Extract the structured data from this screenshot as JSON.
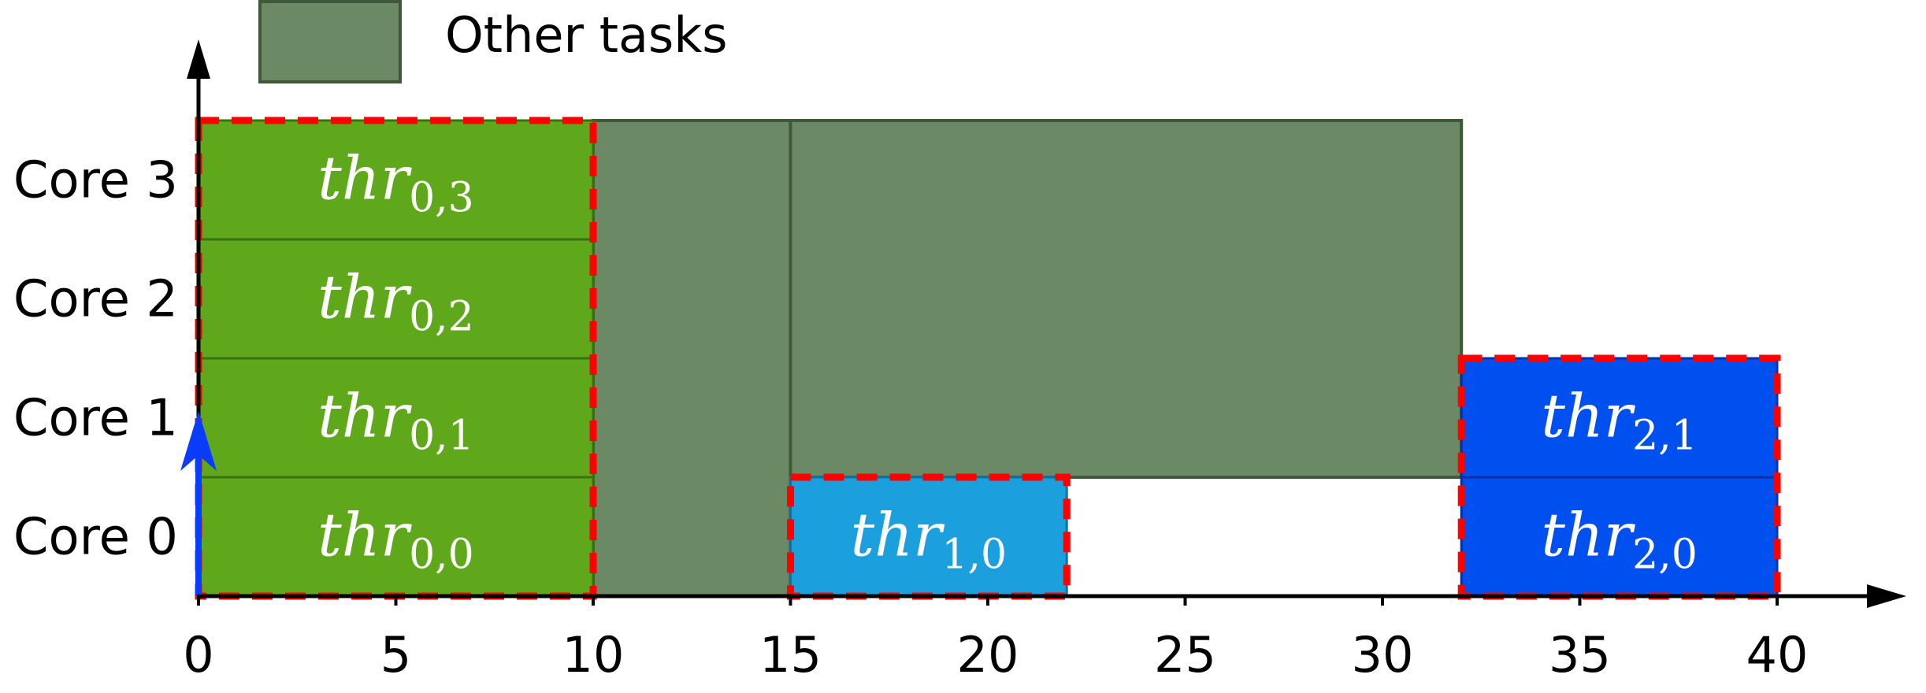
{
  "chart_data": {
    "type": "gantt",
    "xlim": [
      0,
      40
    ],
    "xticks": [
      0,
      5,
      10,
      15,
      20,
      25,
      30,
      35,
      40
    ],
    "xtick_labels": [
      "0",
      "5",
      "10",
      "15",
      "20",
      "25",
      "30",
      "35",
      "40"
    ],
    "rows": [
      "Core 0",
      "Core 1",
      "Core 2",
      "Core 3"
    ],
    "legend": {
      "label": "Other tasks",
      "color": "#6b8964"
    },
    "other_tasks": [
      {
        "start": 10,
        "end": 15,
        "cores": [
          0,
          3
        ]
      },
      {
        "start": 15,
        "end": 32,
        "cores": [
          1,
          3
        ]
      }
    ],
    "threads": [
      {
        "base": "thr",
        "sub": "0,0",
        "start": 0,
        "end": 10,
        "core": 0,
        "color": "#5fa71b"
      },
      {
        "base": "thr",
        "sub": "0,1",
        "start": 0,
        "end": 10,
        "core": 1,
        "color": "#5fa71b"
      },
      {
        "base": "thr",
        "sub": "0,2",
        "start": 0,
        "end": 10,
        "core": 2,
        "color": "#5fa71b"
      },
      {
        "base": "thr",
        "sub": "0,3",
        "start": 0,
        "end": 10,
        "core": 3,
        "color": "#5fa71b"
      },
      {
        "base": "thr",
        "sub": "1,0",
        "start": 15,
        "end": 22,
        "core": 0,
        "color": "#1ca0dd"
      },
      {
        "base": "thr",
        "sub": "2,0",
        "start": 32,
        "end": 40,
        "core": 0,
        "color": "#0050ef"
      },
      {
        "base": "thr",
        "sub": "2,1",
        "start": 32,
        "end": 40,
        "core": 1,
        "color": "#0050ef"
      }
    ],
    "groups": [
      {
        "start": 0,
        "end": 10,
        "cores": [
          0,
          3
        ]
      },
      {
        "start": 15,
        "end": 22,
        "cores": [
          0,
          0
        ]
      },
      {
        "start": 32,
        "end": 40,
        "cores": [
          0,
          1
        ]
      }
    ],
    "release_arrow": {
      "x": 0,
      "color": "#0a3cff"
    },
    "group_border_color": "#ff0000"
  }
}
